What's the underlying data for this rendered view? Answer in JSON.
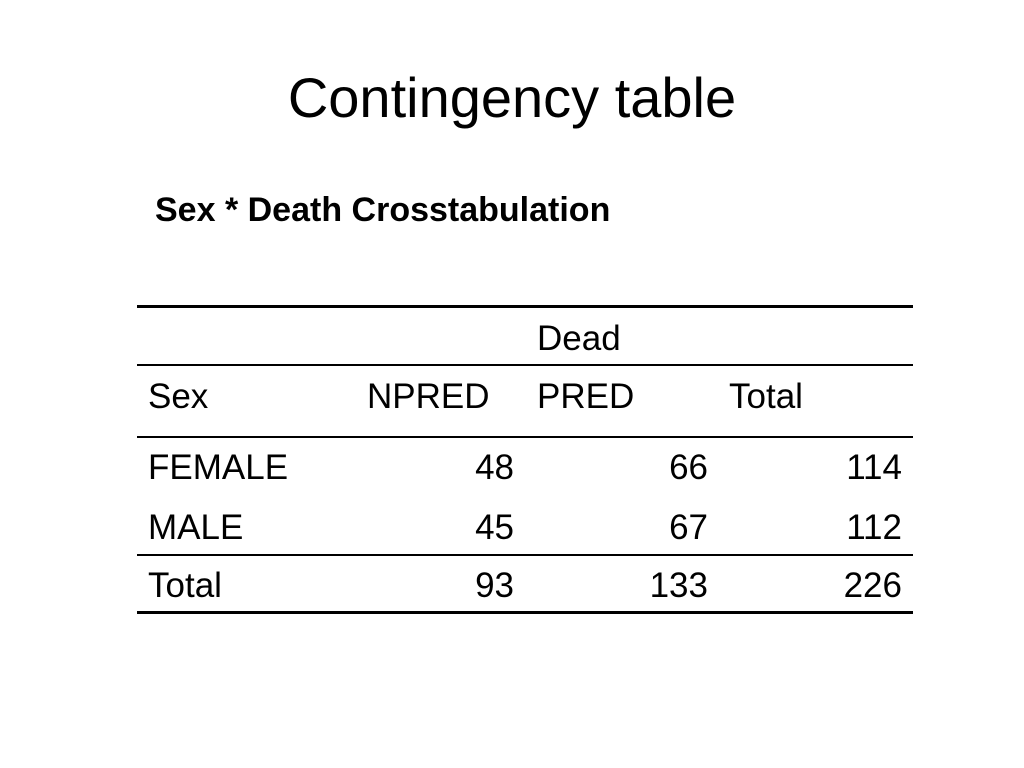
{
  "title": "Contingency table",
  "table": {
    "caption": "Sex * Death Crosstabulation",
    "group_header": "Dead",
    "columns": [
      "Sex",
      "NPRED",
      "PRED",
      "Total"
    ],
    "rows": [
      [
        "FEMALE",
        48,
        66,
        114
      ],
      [
        "MALE",
        45,
        67,
        112
      ]
    ],
    "total": [
      "Total",
      93,
      133,
      226
    ]
  }
}
